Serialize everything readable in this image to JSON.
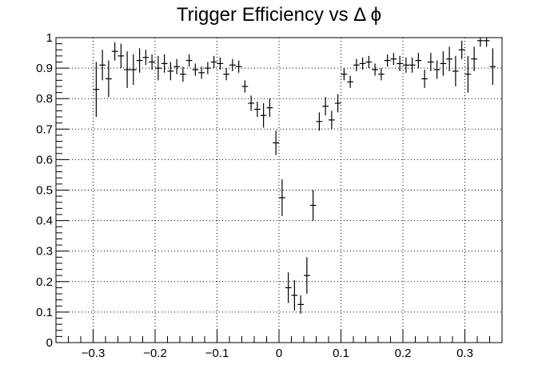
{
  "chart_data": {
    "type": "scatter",
    "title": "Trigger Efficiency vs Δ ϕ",
    "xlabel": "",
    "ylabel": "",
    "xlim": [
      -0.36,
      0.36
    ],
    "ylim": [
      0,
      1
    ],
    "grid": true,
    "legend": "none",
    "x_ticks": [
      {
        "value": -0.3,
        "label": "−0.3"
      },
      {
        "value": -0.2,
        "label": "−0.2"
      },
      {
        "value": -0.1,
        "label": "−0.1"
      },
      {
        "value": 0,
        "label": "0"
      },
      {
        "value": 0.1,
        "label": "0.1"
      },
      {
        "value": 0.2,
        "label": "0.2"
      },
      {
        "value": 0.3,
        "label": "0.3"
      }
    ],
    "y_ticks": [
      {
        "value": 0,
        "label": "0"
      },
      {
        "value": 0.1,
        "label": "0.1"
      },
      {
        "value": 0.2,
        "label": "0.2"
      },
      {
        "value": 0.3,
        "label": "0.3"
      },
      {
        "value": 0.4,
        "label": "0.4"
      },
      {
        "value": 0.5,
        "label": "0.5"
      },
      {
        "value": 0.6,
        "label": "0.6"
      },
      {
        "value": 0.7,
        "label": "0.7"
      },
      {
        "value": 0.8,
        "label": "0.8"
      },
      {
        "value": 0.9,
        "label": "0.9"
      },
      {
        "value": 1,
        "label": "1"
      }
    ],
    "bin_half_width": 0.005,
    "series": [
      {
        "points": [
          {
            "x": -0.295,
            "y": 0.83,
            "err": 0.09
          },
          {
            "x": -0.285,
            "y": 0.91,
            "err": 0.05
          },
          {
            "x": -0.275,
            "y": 0.865,
            "err": 0.06
          },
          {
            "x": -0.265,
            "y": 0.955,
            "err": 0.03
          },
          {
            "x": -0.255,
            "y": 0.94,
            "err": 0.04
          },
          {
            "x": -0.245,
            "y": 0.895,
            "err": 0.06
          },
          {
            "x": -0.235,
            "y": 0.895,
            "err": 0.05
          },
          {
            "x": -0.225,
            "y": 0.925,
            "err": 0.04
          },
          {
            "x": -0.215,
            "y": 0.935,
            "err": 0.025
          },
          {
            "x": -0.205,
            "y": 0.92,
            "err": 0.025
          },
          {
            "x": -0.195,
            "y": 0.9,
            "err": 0.04
          },
          {
            "x": -0.185,
            "y": 0.915,
            "err": 0.03
          },
          {
            "x": -0.175,
            "y": 0.89,
            "err": 0.03
          },
          {
            "x": -0.165,
            "y": 0.905,
            "err": 0.025
          },
          {
            "x": -0.155,
            "y": 0.88,
            "err": 0.025
          },
          {
            "x": -0.145,
            "y": 0.925,
            "err": 0.02
          },
          {
            "x": -0.135,
            "y": 0.895,
            "err": 0.02
          },
          {
            "x": -0.125,
            "y": 0.885,
            "err": 0.02
          },
          {
            "x": -0.115,
            "y": 0.9,
            "err": 0.02
          },
          {
            "x": -0.105,
            "y": 0.92,
            "err": 0.02
          },
          {
            "x": -0.095,
            "y": 0.915,
            "err": 0.02
          },
          {
            "x": -0.085,
            "y": 0.88,
            "err": 0.02
          },
          {
            "x": -0.075,
            "y": 0.91,
            "err": 0.02
          },
          {
            "x": -0.065,
            "y": 0.905,
            "err": 0.02
          },
          {
            "x": -0.055,
            "y": 0.84,
            "err": 0.02
          },
          {
            "x": -0.045,
            "y": 0.785,
            "err": 0.025
          },
          {
            "x": -0.035,
            "y": 0.765,
            "err": 0.025
          },
          {
            "x": -0.025,
            "y": 0.745,
            "err": 0.04
          },
          {
            "x": -0.015,
            "y": 0.77,
            "err": 0.03
          },
          {
            "x": -0.005,
            "y": 0.655,
            "err": 0.04
          },
          {
            "x": 0.005,
            "y": 0.475,
            "err": 0.06
          },
          {
            "x": 0.015,
            "y": 0.18,
            "err": 0.05
          },
          {
            "x": 0.025,
            "y": 0.155,
            "err": 0.05
          },
          {
            "x": 0.035,
            "y": 0.125,
            "err": 0.03
          },
          {
            "x": 0.045,
            "y": 0.22,
            "err": 0.06
          },
          {
            "x": 0.055,
            "y": 0.45,
            "err": 0.05
          },
          {
            "x": 0.065,
            "y": 0.725,
            "err": 0.03
          },
          {
            "x": 0.075,
            "y": 0.775,
            "err": 0.03
          },
          {
            "x": 0.085,
            "y": 0.73,
            "err": 0.03
          },
          {
            "x": 0.095,
            "y": 0.785,
            "err": 0.03
          },
          {
            "x": 0.105,
            "y": 0.88,
            "err": 0.02
          },
          {
            "x": 0.115,
            "y": 0.855,
            "err": 0.02
          },
          {
            "x": 0.125,
            "y": 0.91,
            "err": 0.02
          },
          {
            "x": 0.135,
            "y": 0.915,
            "err": 0.02
          },
          {
            "x": 0.145,
            "y": 0.92,
            "err": 0.02
          },
          {
            "x": 0.155,
            "y": 0.895,
            "err": 0.02
          },
          {
            "x": 0.165,
            "y": 0.88,
            "err": 0.02
          },
          {
            "x": 0.175,
            "y": 0.925,
            "err": 0.02
          },
          {
            "x": 0.185,
            "y": 0.93,
            "err": 0.02
          },
          {
            "x": 0.195,
            "y": 0.915,
            "err": 0.025
          },
          {
            "x": 0.205,
            "y": 0.91,
            "err": 0.025
          },
          {
            "x": 0.215,
            "y": 0.91,
            "err": 0.025
          },
          {
            "x": 0.225,
            "y": 0.925,
            "err": 0.025
          },
          {
            "x": 0.235,
            "y": 0.865,
            "err": 0.03
          },
          {
            "x": 0.245,
            "y": 0.92,
            "err": 0.03
          },
          {
            "x": 0.255,
            "y": 0.895,
            "err": 0.03
          },
          {
            "x": 0.265,
            "y": 0.915,
            "err": 0.04
          },
          {
            "x": 0.275,
            "y": 0.93,
            "err": 0.04
          },
          {
            "x": 0.285,
            "y": 0.89,
            "err": 0.05
          },
          {
            "x": 0.295,
            "y": 0.96,
            "err": 0.03
          },
          {
            "x": 0.305,
            "y": 0.88,
            "err": 0.06
          },
          {
            "x": 0.315,
            "y": 0.93,
            "err": 0.04
          },
          {
            "x": 0.325,
            "y": 0.99,
            "err": 0.02
          },
          {
            "x": 0.335,
            "y": 0.99,
            "err": 0.02
          },
          {
            "x": 0.345,
            "y": 0.905,
            "err": 0.06
          }
        ]
      }
    ]
  }
}
